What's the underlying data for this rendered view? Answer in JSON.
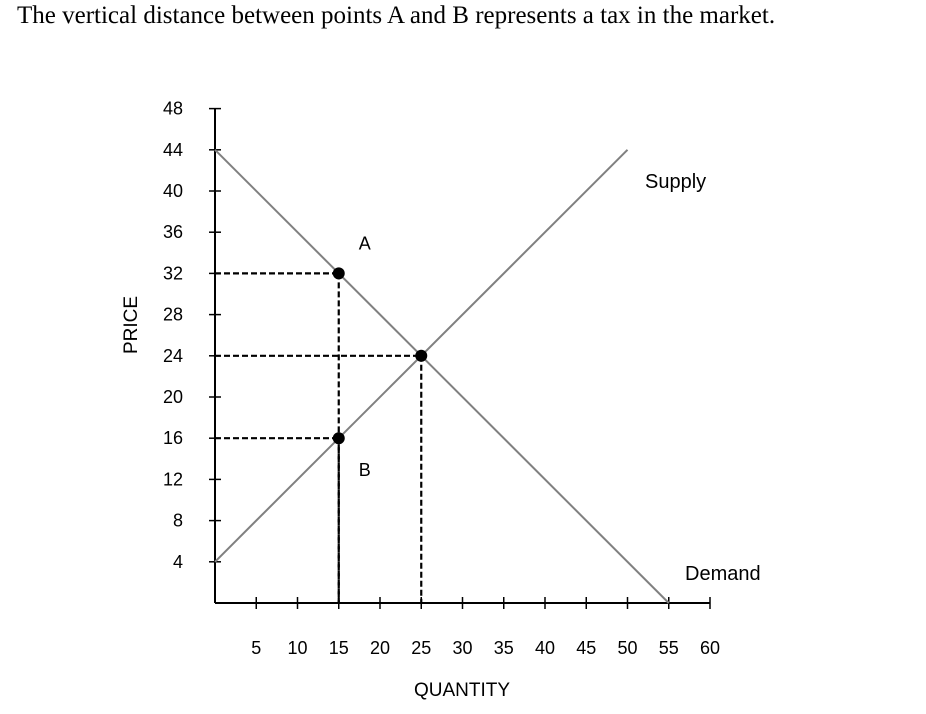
{
  "caption": "The vertical distance between points A and B represents a tax in the market.",
  "chart_data": {
    "type": "line",
    "xlabel": "QUANTITY",
    "ylabel": "PRICE",
    "xlim": [
      0,
      60
    ],
    "ylim": [
      0,
      48
    ],
    "x_ticks": [
      5,
      10,
      15,
      20,
      25,
      30,
      35,
      40,
      45,
      50,
      55,
      60
    ],
    "y_ticks": [
      4,
      8,
      12,
      16,
      20,
      24,
      28,
      32,
      36,
      40,
      44,
      48
    ],
    "grid": false,
    "series": [
      {
        "name": "Supply",
        "x": [
          0,
          50
        ],
        "y": [
          4,
          44
        ],
        "color": "#808080"
      },
      {
        "name": "Demand",
        "x": [
          0,
          55
        ],
        "y": [
          44,
          0
        ],
        "color": "#808080"
      }
    ],
    "points": [
      {
        "label": "A",
        "x": 15,
        "y": 32
      },
      {
        "label": "",
        "x": 25,
        "y": 24
      },
      {
        "label": "B",
        "x": 15,
        "y": 16
      }
    ],
    "guides": [
      {
        "x": 15,
        "y": 32
      },
      {
        "x": 25,
        "y": 24
      },
      {
        "x": 15,
        "y": 16
      }
    ]
  }
}
